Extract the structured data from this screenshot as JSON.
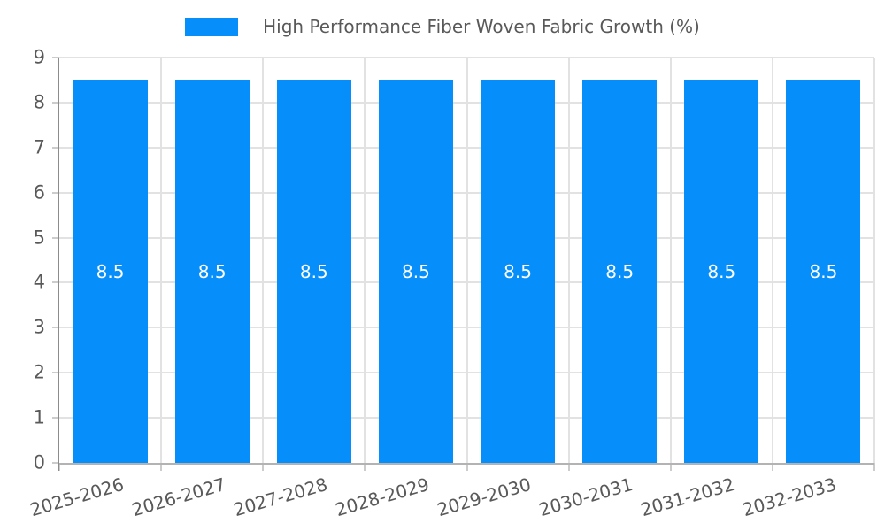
{
  "chart_data": {
    "type": "bar",
    "legend": "High Performance Fiber Woven Fabric Growth (%)",
    "legend_position": "top-center",
    "categories": [
      "2025-2026",
      "2026-2027",
      "2027-2028",
      "2028-2029",
      "2029-2030",
      "2030-2031",
      "2031-2032",
      "2032-2033"
    ],
    "values": [
      8.5,
      8.5,
      8.5,
      8.5,
      8.5,
      8.5,
      8.5,
      8.5
    ],
    "bar_labels": [
      "8.5",
      "8.5",
      "8.5",
      "8.5",
      "8.5",
      "8.5",
      "8.5",
      "8.5"
    ],
    "xlabel": "",
    "ylabel": "",
    "ylim": [
      0,
      9
    ],
    "yticks": [
      0,
      1,
      2,
      3,
      4,
      5,
      6,
      7,
      8,
      9
    ],
    "grid": true,
    "colors": {
      "bar": "#068ffa",
      "grid": "#e2e2e2",
      "tick": "#cccccc",
      "axis_left": "#8c8c8c",
      "axis_bottom": "#b3b3b3",
      "text": "#595959",
      "bar_label": "#ffffff"
    }
  }
}
